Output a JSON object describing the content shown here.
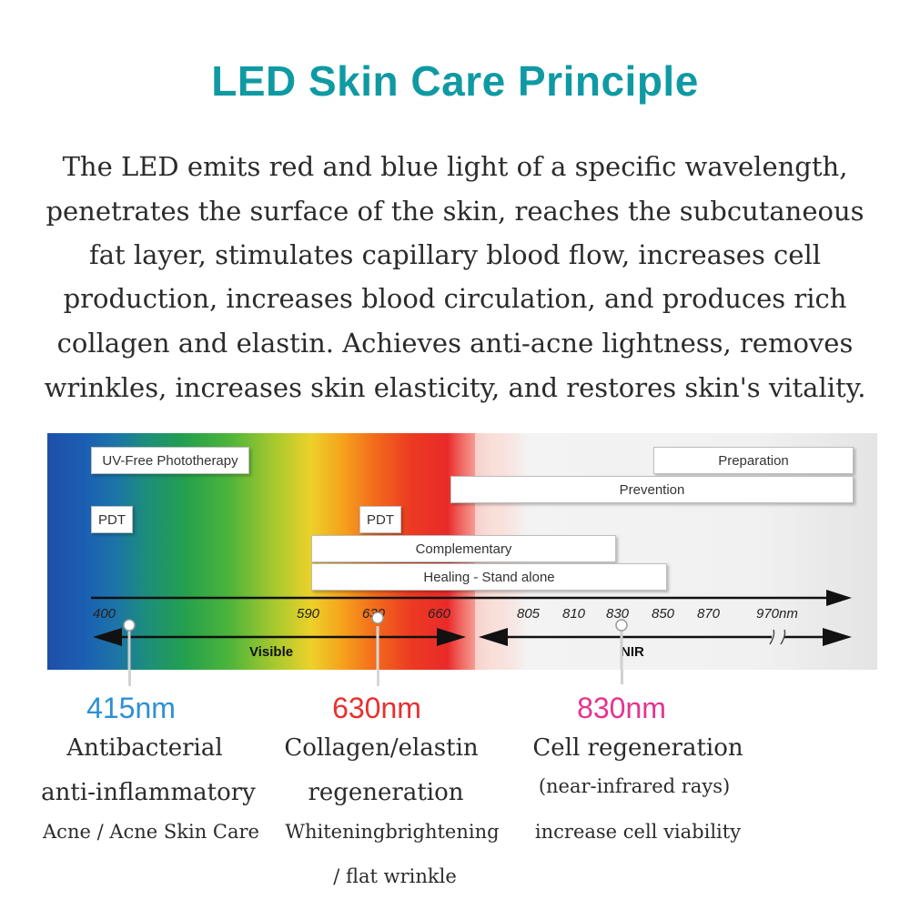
{
  "title": "LED Skin Care Principle",
  "colors": {
    "title": "#0f9aa3",
    "wl_415": "#2d8fd6",
    "wl_630": "#e8302f",
    "wl_830": "#e5338f"
  },
  "intro_lines": [
    "The LED emits red and blue light of a specific wavelength,",
    "penetrates the surface of the skin, reaches the subcutaneous",
    "fat layer, stimulates capillary blood flow, increases cell",
    "production, increases blood circulation, and produces rich",
    "collagen and elastin. Achieves anti-acne lightness, removes",
    "wrinkles, increases skin elasticity, and restores skin's vitality."
  ],
  "spectrum": {
    "labels": {
      "uv_free": "UV-Free Phototherapy",
      "pdt_left": "PDT",
      "pdt_right": "PDT",
      "preparation": "Preparation",
      "prevention": "Prevention",
      "complementary": "Complementary",
      "healing": "Healing - Stand alone"
    },
    "ticks": [
      "400",
      "590",
      "630",
      "660",
      "805",
      "810",
      "830",
      "850",
      "870",
      "970nm"
    ],
    "band_visible": "Visible",
    "band_nir": "NIR"
  },
  "wavelengths": [
    {
      "value": "415nm",
      "lines": [
        "Antibacterial",
        "anti-inflammatory",
        "Acne / Acne Skin Care"
      ]
    },
    {
      "value": "630nm",
      "lines": [
        "Collagen/elastin",
        "regeneration",
        "Whiteningbrightening",
        "/ flat wrinkle"
      ]
    },
    {
      "value": "830nm",
      "lines": [
        "Cell regeneration",
        "(near-infrared rays)",
        "increase cell viability"
      ]
    }
  ]
}
